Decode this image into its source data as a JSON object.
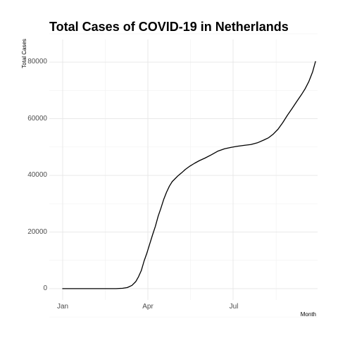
{
  "chart_data": {
    "type": "line",
    "title": "Total Cases of COVID-19 in Netherlands",
    "xlabel": "Month",
    "ylabel": "Total Cases",
    "x_tick_labels": [
      "Jan",
      "Apr",
      "Jul"
    ],
    "y_tick_labels": [
      "0",
      "20000",
      "40000",
      "60000",
      "80000"
    ],
    "y_ticks": [
      0,
      20000,
      40000,
      60000,
      80000
    ],
    "ylim": [
      -4000,
      88000
    ],
    "grid": true,
    "legend": "none",
    "series": [
      {
        "color": "#000000",
        "x": [
          "2020-01-01",
          "2020-02-01",
          "2020-02-27",
          "2020-03-05",
          "2020-03-10",
          "2020-03-15",
          "2020-03-19",
          "2020-03-22",
          "2020-03-25",
          "2020-03-28",
          "2020-03-31",
          "2020-04-03",
          "2020-04-06",
          "2020-04-09",
          "2020-04-12",
          "2020-04-15",
          "2020-04-18",
          "2020-04-21",
          "2020-04-24",
          "2020-04-27",
          "2020-04-30",
          "2020-05-03",
          "2020-05-07",
          "2020-05-11",
          "2020-05-16",
          "2020-05-21",
          "2020-05-26",
          "2020-06-01",
          "2020-06-08",
          "2020-06-15",
          "2020-06-22",
          "2020-06-29",
          "2020-07-06",
          "2020-07-13",
          "2020-07-20",
          "2020-07-27",
          "2020-08-03",
          "2020-08-08",
          "2020-08-13",
          "2020-08-18",
          "2020-08-23",
          "2020-08-28",
          "2020-09-02",
          "2020-09-07",
          "2020-09-12",
          "2020-09-16",
          "2020-09-20",
          "2020-09-24",
          "2020-09-27"
        ],
        "y": [
          0,
          0,
          5,
          130,
          380,
          1140,
          2460,
          4200,
          6400,
          9800,
          12600,
          15800,
          19000,
          22000,
          25600,
          28500,
          31600,
          34100,
          36200,
          37800,
          38800,
          39800,
          40900,
          42100,
          43300,
          44300,
          45200,
          46100,
          47300,
          48600,
          49400,
          49900,
          50300,
          50600,
          50900,
          51500,
          52500,
          53300,
          54600,
          56300,
          58600,
          61200,
          63600,
          66100,
          68500,
          70600,
          73200,
          76600,
          80200
        ]
      }
    ]
  }
}
